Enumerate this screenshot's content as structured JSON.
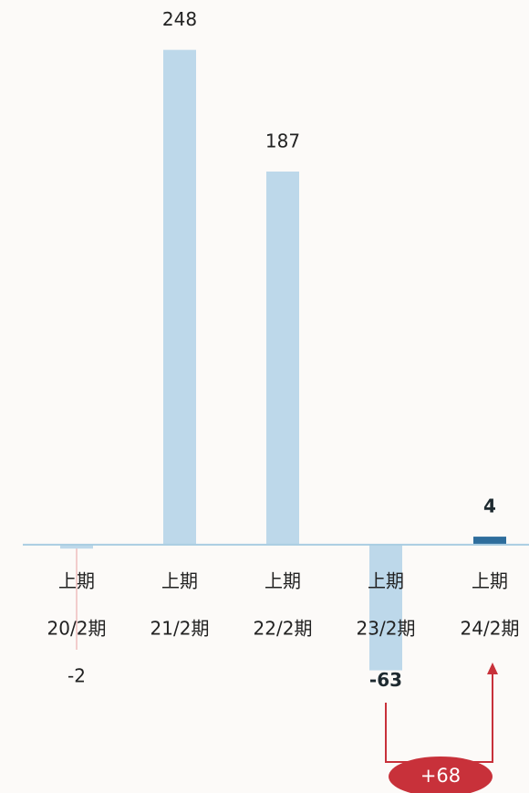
{
  "chart_data": {
    "type": "bar",
    "categories": [
      [
        "上期",
        "20/2期"
      ],
      [
        "上期",
        "21/2期"
      ],
      [
        "上期",
        "22/2期"
      ],
      [
        "上期",
        "23/2期"
      ],
      [
        "上期",
        "24/2期"
      ]
    ],
    "values": [
      -2,
      248,
      187,
      -63,
      4
    ],
    "colors": [
      "#bdd8ea",
      "#bdd8ea",
      "#bdd8ea",
      "#bdd8ea",
      "#2e6d9c"
    ],
    "ylim": [
      -124.5,
      273
    ],
    "annotations": [
      {
        "text": "+68"
      }
    ]
  }
}
